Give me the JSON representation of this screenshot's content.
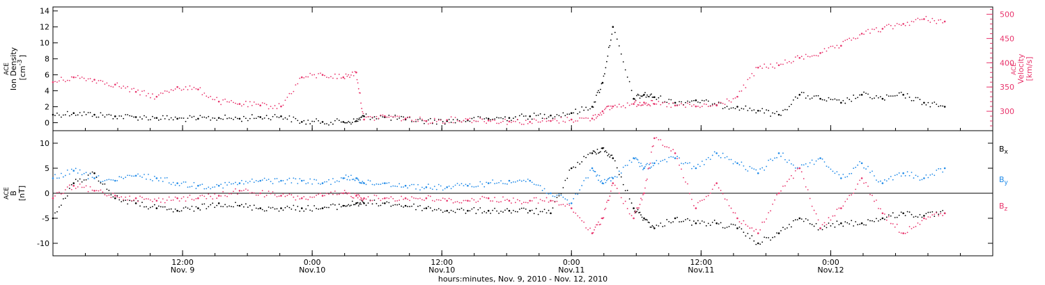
{
  "chart_data": [
    {
      "type": "scatter",
      "panel": "top",
      "ylabel_left": [
        "ACE",
        "Ion Density",
        "[cm",
        "-3",
        "]"
      ],
      "ylabel_right": [
        "ACE",
        "Velocity",
        "[km/s]"
      ],
      "ylim_left": [
        -1,
        14.5
      ],
      "yticks_left": [
        "0",
        "2",
        "4",
        "6",
        "8",
        "10",
        "12",
        "14"
      ],
      "ylim_right": [
        260,
        515
      ],
      "yticks_right": [
        "300",
        "350",
        "400",
        "450",
        "500"
      ],
      "grid": false,
      "series": [
        {
          "role": "density",
          "color": "#000000",
          "axis": "left",
          "x": [
            0.0,
            0.08,
            0.16,
            0.24,
            0.32,
            0.4,
            0.48,
            0.56,
            0.64,
            0.72,
            0.8,
            0.88,
            0.96,
            1.04,
            1.12,
            1.17,
            1.2,
            1.28,
            1.36,
            1.44,
            1.52,
            1.6,
            1.68,
            1.76,
            1.84,
            1.92,
            2.0,
            2.08,
            2.12,
            2.16,
            2.24,
            2.28,
            2.32,
            2.4,
            2.48,
            2.56,
            2.64,
            2.72,
            2.8,
            2.88,
            2.96,
            3.04,
            3.12,
            3.2,
            3.28,
            3.36,
            3.44
          ],
          "y": [
            1.0,
            1.2,
            1.0,
            0.8,
            0.7,
            0.6,
            0.5,
            0.5,
            0.6,
            0.5,
            0.7,
            0.8,
            0.1,
            0.1,
            0.1,
            0.2,
            0.8,
            0.7,
            0.4,
            0.2,
            0.2,
            0.3,
            0.5,
            0.6,
            0.8,
            0.9,
            1.2,
            2.0,
            5.0,
            12.0,
            3.0,
            3.5,
            3.2,
            2.5,
            2.8,
            2.2,
            2.0,
            1.5,
            1.0,
            3.5,
            3.0,
            2.5,
            3.5,
            3.0,
            3.5,
            2.5,
            2.0
          ]
        },
        {
          "role": "velocity",
          "color": "#e8336b",
          "axis": "right",
          "x": [
            0.0,
            0.08,
            0.16,
            0.24,
            0.32,
            0.4,
            0.48,
            0.56,
            0.64,
            0.72,
            0.8,
            0.88,
            0.96,
            1.04,
            1.12,
            1.17,
            1.2,
            1.28,
            1.36,
            1.44,
            1.52,
            1.6,
            1.68,
            1.76,
            1.84,
            1.92,
            2.0,
            2.08,
            2.12,
            2.16,
            2.24,
            2.28,
            2.32,
            2.4,
            2.48,
            2.56,
            2.64,
            2.72,
            2.8,
            2.88,
            2.96,
            3.04,
            3.12,
            3.2,
            3.28,
            3.36,
            3.44
          ],
          "y": [
            360,
            370,
            365,
            355,
            340,
            330,
            350,
            345,
            320,
            315,
            312,
            310,
            370,
            375,
            370,
            380,
            283,
            290,
            285,
            280,
            282,
            283,
            281,
            279,
            278,
            280,
            283,
            285,
            300,
            310,
            315,
            318,
            315,
            312,
            310,
            312,
            330,
            390,
            395,
            410,
            420,
            435,
            460,
            470,
            480,
            490,
            485
          ]
        }
      ]
    },
    {
      "type": "scatter",
      "panel": "bottom",
      "ylabel_left": [
        "ACE",
        "B",
        "[nT]"
      ],
      "ylim": [
        -12.5,
        12.5
      ],
      "yticks": [
        "-10",
        "-5",
        "0",
        "5",
        "10"
      ],
      "zero_line": true,
      "legend_position": "right",
      "xticks": [
        {
          "x": 0.5,
          "time": "12:00",
          "date": "Nov. 9"
        },
        {
          "x": 1.0,
          "time": "0:00",
          "date": "Nov.10"
        },
        {
          "x": 1.5,
          "time": "12:00",
          "date": "Nov.10"
        },
        {
          "x": 2.0,
          "time": "0:00",
          "date": "Nov.11"
        },
        {
          "x": 2.5,
          "time": "12:00",
          "date": "Nov.11"
        },
        {
          "x": 3.0,
          "time": "0:00",
          "date": "Nov.12"
        }
      ],
      "xlim": [
        0.0,
        3.625
      ],
      "xlabel": "hours:minutes, Nov.  9, 2010 - Nov. 12, 2010",
      "series": [
        {
          "name": "B",
          "subscript": "x",
          "color": "#000000",
          "x": [
            0.0,
            0.08,
            0.16,
            0.24,
            0.32,
            0.4,
            0.48,
            0.56,
            0.64,
            0.72,
            0.8,
            0.88,
            0.96,
            1.04,
            1.12,
            1.17,
            1.2,
            1.28,
            1.36,
            1.44,
            1.52,
            1.6,
            1.68,
            1.76,
            1.84,
            1.92,
            2.0,
            2.08,
            2.12,
            2.16,
            2.24,
            2.28,
            2.32,
            2.4,
            2.48,
            2.56,
            2.64,
            2.72,
            2.8,
            2.88,
            2.96,
            3.04,
            3.12,
            3.2,
            3.28,
            3.36,
            3.44
          ],
          "y": [
            -5.0,
            2.0,
            4.0,
            -1.0,
            -2.0,
            -3.0,
            -3.5,
            -3.0,
            -2.0,
            -2.5,
            -3.0,
            -3.0,
            -3.0,
            -3.0,
            -2.5,
            -2.0,
            -2.0,
            -2.0,
            -2.5,
            -3.0,
            -3.5,
            -3.5,
            -3.5,
            -3.5,
            -3.5,
            -4.0,
            5.0,
            8.0,
            9.0,
            7.0,
            -3.0,
            -5.0,
            -7.0,
            -5.0,
            -6.0,
            -6.0,
            -7.0,
            -10.0,
            -8.0,
            -5.0,
            -7.0,
            -6.0,
            -6.0,
            -5.0,
            -4.0,
            -4.5,
            -4.0
          ]
        },
        {
          "name": "B",
          "subscript": "y",
          "color": "#1f8ae8",
          "x": [
            0.0,
            0.08,
            0.16,
            0.24,
            0.32,
            0.4,
            0.48,
            0.56,
            0.64,
            0.72,
            0.8,
            0.88,
            0.96,
            1.04,
            1.12,
            1.17,
            1.2,
            1.28,
            1.36,
            1.44,
            1.52,
            1.6,
            1.68,
            1.76,
            1.84,
            1.92,
            2.0,
            2.08,
            2.12,
            2.16,
            2.24,
            2.28,
            2.32,
            2.4,
            2.48,
            2.56,
            2.64,
            2.72,
            2.8,
            2.88,
            2.96,
            3.04,
            3.12,
            3.2,
            3.28,
            3.36,
            3.44
          ],
          "y": [
            3.0,
            4.5,
            3.0,
            2.5,
            3.5,
            3.0,
            2.0,
            1.5,
            1.5,
            2.0,
            2.5,
            2.5,
            2.5,
            2.0,
            3.0,
            3.0,
            2.0,
            2.0,
            1.5,
            1.2,
            1.2,
            1.5,
            2.0,
            2.5,
            2.5,
            0.0,
            -2.0,
            5.0,
            2.0,
            3.0,
            7.0,
            5.0,
            6.0,
            7.0,
            5.0,
            8.0,
            6.0,
            4.0,
            8.0,
            5.0,
            7.0,
            3.0,
            6.0,
            2.0,
            4.0,
            3.0,
            5.0
          ]
        },
        {
          "name": "B",
          "subscript": "z",
          "color": "#e8336b",
          "x": [
            0.0,
            0.08,
            0.16,
            0.24,
            0.32,
            0.4,
            0.48,
            0.56,
            0.64,
            0.72,
            0.8,
            0.88,
            0.96,
            1.04,
            1.12,
            1.17,
            1.2,
            1.28,
            1.36,
            1.44,
            1.52,
            1.6,
            1.68,
            1.76,
            1.84,
            1.92,
            2.0,
            2.08,
            2.12,
            2.16,
            2.24,
            2.28,
            2.32,
            2.4,
            2.48,
            2.56,
            2.64,
            2.72,
            2.8,
            2.88,
            2.96,
            3.04,
            3.12,
            3.2,
            3.28,
            3.36,
            3.44
          ],
          "y": [
            -1.0,
            1.5,
            0.5,
            -0.5,
            -1.0,
            -1.5,
            -1.0,
            -1.0,
            -0.5,
            0.5,
            0.0,
            -0.5,
            -1.0,
            -0.5,
            0.0,
            -0.5,
            -1.0,
            -1.0,
            -1.0,
            -1.0,
            -1.5,
            -1.5,
            -1.0,
            -1.5,
            -1.5,
            -1.5,
            -3.0,
            -8.0,
            -5.0,
            2.0,
            -5.0,
            0.0,
            11.0,
            8.0,
            -3.0,
            2.0,
            -5.0,
            -8.0,
            0.0,
            5.0,
            -7.0,
            -3.0,
            3.0,
            -4.0,
            -8.0,
            -5.0,
            -4.0
          ]
        }
      ]
    }
  ]
}
